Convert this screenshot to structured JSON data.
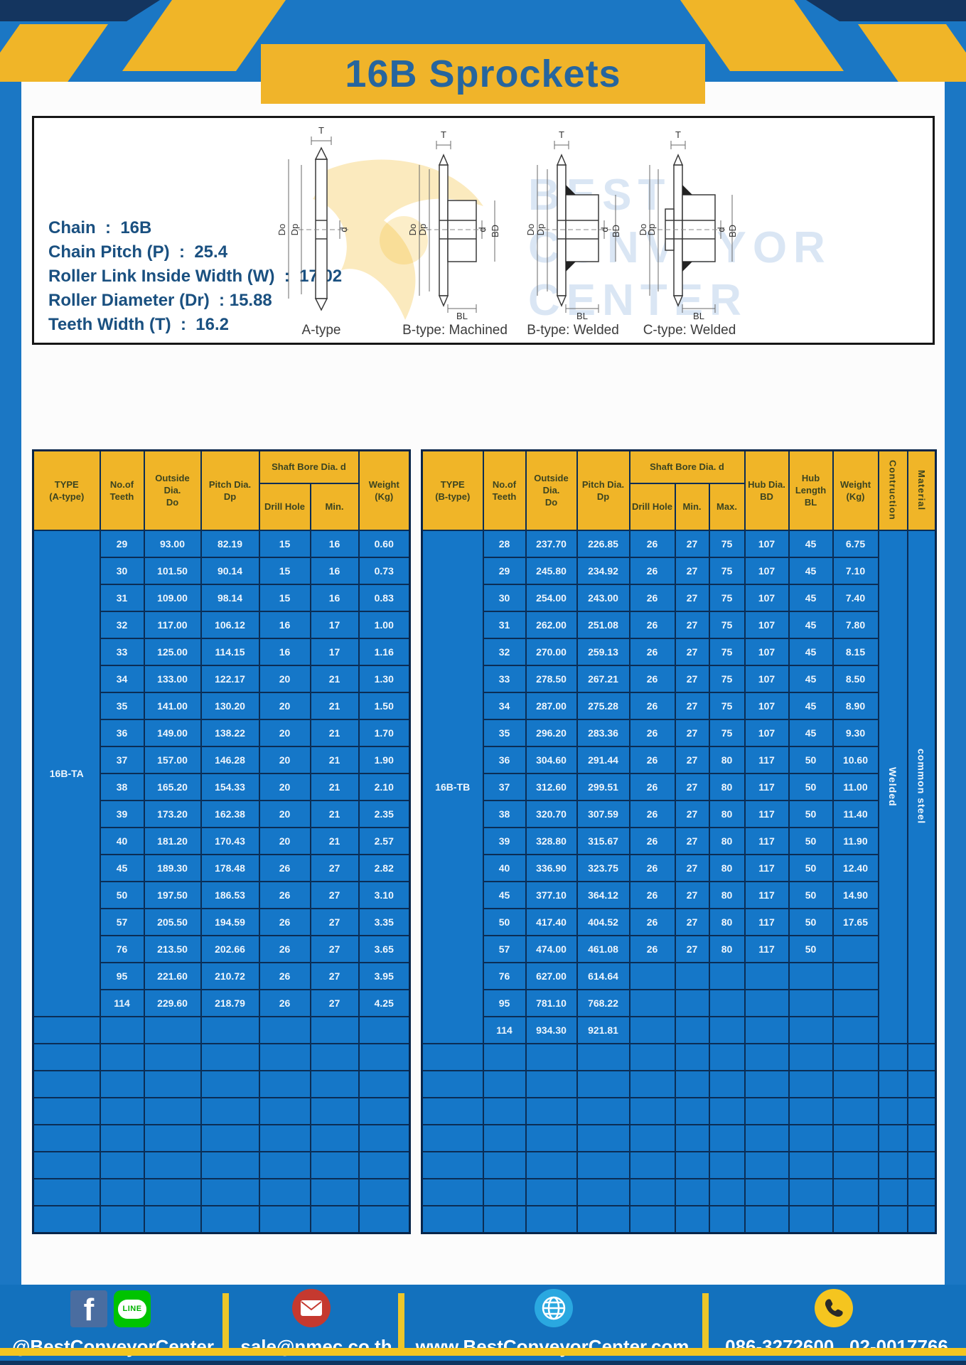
{
  "title": "16B Sprockets",
  "colors": {
    "accent_yellow": "#f0b528",
    "table_blue": "#1577c8",
    "grid_navy": "#0b2d55",
    "title_blue": "#26659e",
    "footer_blue": "#1371bd"
  },
  "specs": {
    "lines": [
      "Chain  :  16B",
      "Chain Pitch (P)  :  25.4",
      "Roller Link Inside Width (W)  :  17.02",
      "Roller Diameter (Dr)  : 15.88",
      "Teeth Width (T)  :  16.2"
    ]
  },
  "diagram": {
    "labels": [
      "A-type",
      "B-type: Machined",
      "B-type: Welded",
      "C-type: Welded"
    ],
    "dims": [
      "T",
      "Do",
      "Dp",
      "d",
      "BD",
      "BL"
    ],
    "watermark": [
      "BEST",
      "CONVEYOR",
      "CENTER"
    ]
  },
  "table_a": {
    "headers": {
      "type": "TYPE\n(A-type)",
      "teeth": "No.of\nTeeth",
      "outside": "Outside\nDia.\nDo",
      "pitch": "Pitch Dia.\nDp",
      "shaft": "Shaft Bore Dia. d",
      "drill": "Drill Hole",
      "min": "Min.",
      "weight": "Weight\n(Kg)"
    },
    "type_label": "16B-TA",
    "rows": [
      [
        "29",
        "93.00",
        "82.19",
        "15",
        "16",
        "0.60"
      ],
      [
        "30",
        "101.50",
        "90.14",
        "15",
        "16",
        "0.73"
      ],
      [
        "31",
        "109.00",
        "98.14",
        "15",
        "16",
        "0.83"
      ],
      [
        "32",
        "117.00",
        "106.12",
        "16",
        "17",
        "1.00"
      ],
      [
        "33",
        "125.00",
        "114.15",
        "16",
        "17",
        "1.16"
      ],
      [
        "34",
        "133.00",
        "122.17",
        "20",
        "21",
        "1.30"
      ],
      [
        "35",
        "141.00",
        "130.20",
        "20",
        "21",
        "1.50"
      ],
      [
        "36",
        "149.00",
        "138.22",
        "20",
        "21",
        "1.70"
      ],
      [
        "37",
        "157.00",
        "146.28",
        "20",
        "21",
        "1.90"
      ],
      [
        "38",
        "165.20",
        "154.33",
        "20",
        "21",
        "2.10"
      ],
      [
        "39",
        "173.20",
        "162.38",
        "20",
        "21",
        "2.35"
      ],
      [
        "40",
        "181.20",
        "170.43",
        "20",
        "21",
        "2.57"
      ],
      [
        "45",
        "189.30",
        "178.48",
        "26",
        "27",
        "2.82"
      ],
      [
        "50",
        "197.50",
        "186.53",
        "26",
        "27",
        "3.10"
      ],
      [
        "57",
        "205.50",
        "194.59",
        "26",
        "27",
        "3.35"
      ],
      [
        "76",
        "213.50",
        "202.66",
        "26",
        "27",
        "3.65"
      ],
      [
        "95",
        "221.60",
        "210.72",
        "26",
        "27",
        "3.95"
      ],
      [
        "114",
        "229.60",
        "218.79",
        "26",
        "27",
        "4.25"
      ]
    ],
    "empty_rows": 8
  },
  "table_b": {
    "headers": {
      "type": "TYPE\n(B-type)",
      "teeth": "No.of\nTeeth",
      "outside": "Outside\nDia.\nDo",
      "pitch": "Pitch Dia.\nDp",
      "shaft": "Shaft Bore Dia. d",
      "drill": "Drill Hole",
      "min": "Min.",
      "max": "Max.",
      "hub_dia": "Hub Dia.\nBD",
      "hub_length": "Hub\nLength\nBL",
      "weight": "Weight\n(Kg)",
      "construction": "Contruction",
      "material": "Material"
    },
    "type_label": "16B-TB",
    "construction": "Welded",
    "material": "common steel",
    "rows": [
      [
        "28",
        "237.70",
        "226.85",
        "26",
        "27",
        "75",
        "107",
        "45",
        "6.75"
      ],
      [
        "29",
        "245.80",
        "234.92",
        "26",
        "27",
        "75",
        "107",
        "45",
        "7.10"
      ],
      [
        "30",
        "254.00",
        "243.00",
        "26",
        "27",
        "75",
        "107",
        "45",
        "7.40"
      ],
      [
        "31",
        "262.00",
        "251.08",
        "26",
        "27",
        "75",
        "107",
        "45",
        "7.80"
      ],
      [
        "32",
        "270.00",
        "259.13",
        "26",
        "27",
        "75",
        "107",
        "45",
        "8.15"
      ],
      [
        "33",
        "278.50",
        "267.21",
        "26",
        "27",
        "75",
        "107",
        "45",
        "8.50"
      ],
      [
        "34",
        "287.00",
        "275.28",
        "26",
        "27",
        "75",
        "107",
        "45",
        "8.90"
      ],
      [
        "35",
        "296.20",
        "283.36",
        "26",
        "27",
        "75",
        "107",
        "45",
        "9.30"
      ],
      [
        "36",
        "304.60",
        "291.44",
        "26",
        "27",
        "80",
        "117",
        "50",
        "10.60"
      ],
      [
        "37",
        "312.60",
        "299.51",
        "26",
        "27",
        "80",
        "117",
        "50",
        "11.00"
      ],
      [
        "38",
        "320.70",
        "307.59",
        "26",
        "27",
        "80",
        "117",
        "50",
        "11.40"
      ],
      [
        "39",
        "328.80",
        "315.67",
        "26",
        "27",
        "80",
        "117",
        "50",
        "11.90"
      ],
      [
        "40",
        "336.90",
        "323.75",
        "26",
        "27",
        "80",
        "117",
        "50",
        "12.40"
      ],
      [
        "45",
        "377.10",
        "364.12",
        "26",
        "27",
        "80",
        "117",
        "50",
        "14.90"
      ],
      [
        "50",
        "417.40",
        "404.52",
        "26",
        "27",
        "80",
        "117",
        "50",
        "17.65"
      ],
      [
        "57",
        "474.00",
        "461.08",
        "26",
        "27",
        "80",
        "117",
        "50",
        ""
      ],
      [
        "76",
        "627.00",
        "614.64",
        "",
        "",
        "",
        "",
        "",
        ""
      ],
      [
        "95",
        "781.10",
        "768.22",
        "",
        "",
        "",
        "",
        "",
        ""
      ],
      [
        "114",
        "934.30",
        "921.81",
        "",
        "",
        "",
        "",
        "",
        ""
      ]
    ],
    "empty_rows": 7
  },
  "footer": {
    "social_handle": "@BestConveyorCenter",
    "line_icon_text": "LINE",
    "facebook_letter": "f",
    "email": "sale@nmec.co.th",
    "website": "www.BestConveyorCenter.com",
    "phones": "086-3272600 , 02-0017766"
  }
}
